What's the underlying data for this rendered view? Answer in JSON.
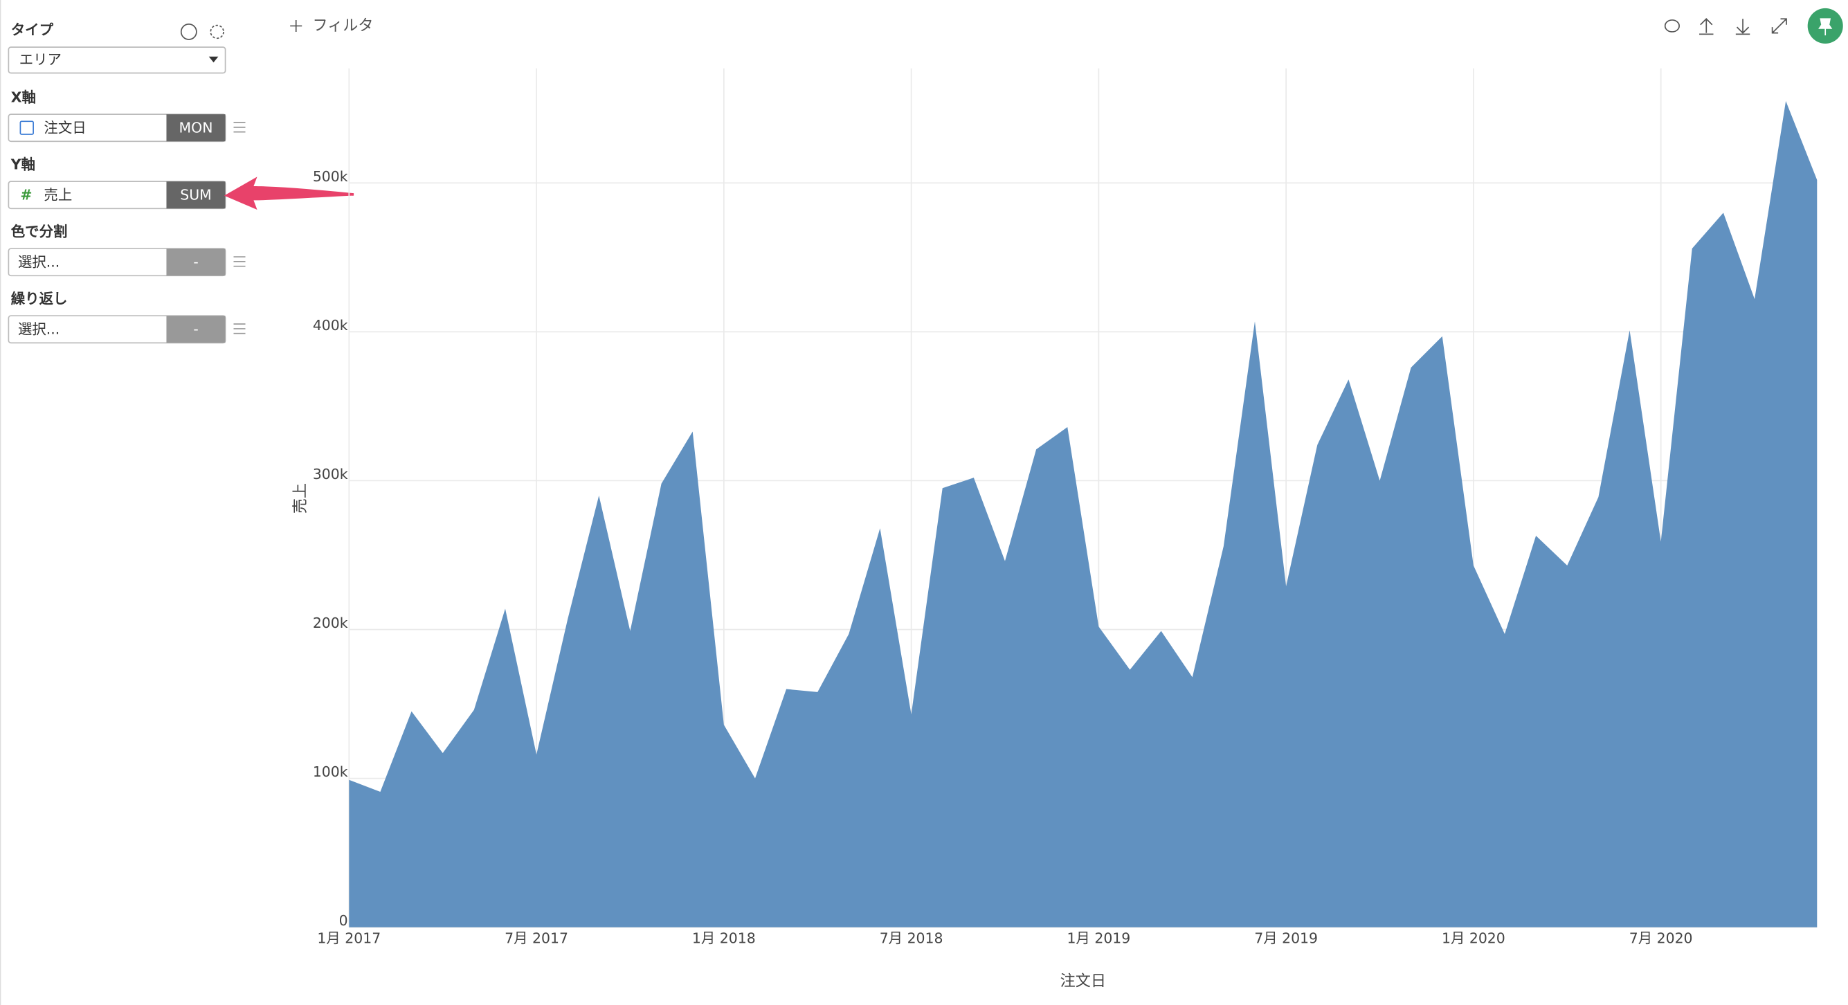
{
  "sidebar": {
    "type_label": "タイプ",
    "type_value": "エリア",
    "x_axis": {
      "label": "X軸",
      "field": "注文日",
      "agg": "MON"
    },
    "y_axis": {
      "label": "Y軸",
      "field": "売上",
      "agg": "SUM"
    },
    "color": {
      "label": "色で分割",
      "field": "選択...",
      "agg": "-"
    },
    "repeat": {
      "label": "繰り返し",
      "field": "選択...",
      "agg": "-"
    }
  },
  "toolbar": {
    "filter": "フィルタ"
  },
  "chart_data": {
    "type": "area",
    "x_label": "注文日",
    "y_label": "売上",
    "grid": true,
    "color": "#6191c0",
    "x": [
      "2017-01",
      "2017-02",
      "2017-03",
      "2017-04",
      "2017-05",
      "2017-06",
      "2017-07",
      "2017-08",
      "2017-09",
      "2017-10",
      "2017-11",
      "2017-12",
      "2018-01",
      "2018-02",
      "2018-03",
      "2018-04",
      "2018-05",
      "2018-06",
      "2018-07",
      "2018-08",
      "2018-09",
      "2018-10",
      "2018-11",
      "2018-12",
      "2019-01",
      "2019-02",
      "2019-03",
      "2019-04",
      "2019-05",
      "2019-06",
      "2019-07",
      "2019-08",
      "2019-09",
      "2019-10",
      "2019-11",
      "2019-12",
      "2020-01",
      "2020-02",
      "2020-03",
      "2020-04",
      "2020-05",
      "2020-06",
      "2020-07",
      "2020-08",
      "2020-09",
      "2020-10",
      "2020-11",
      "2020-12"
    ],
    "values": [
      99000,
      91000,
      145000,
      117000,
      146000,
      214000,
      116000,
      207000,
      290000,
      199000,
      298000,
      333000,
      136000,
      100000,
      160000,
      158000,
      197000,
      268000,
      143000,
      295000,
      302000,
      246000,
      321000,
      336000,
      202000,
      173000,
      199000,
      168000,
      256000,
      407000,
      229000,
      324000,
      368000,
      300000,
      376000,
      397000,
      243000,
      197000,
      263000,
      243000,
      289000,
      401000,
      259000,
      456000,
      480000,
      422000,
      555000,
      502000
    ],
    "ylim": [
      0,
      577000
    ],
    "yticks": [
      0,
      {
        "value": 100000,
        "label": "100k"
      },
      {
        "value": 200000,
        "label": "200k"
      },
      {
        "value": 300000,
        "label": "300k"
      },
      {
        "value": 400000,
        "label": "400k"
      },
      {
        "value": 500000,
        "label": "500k"
      }
    ],
    "xticks": [
      {
        "value": "2017-01",
        "label": "1月 2017"
      },
      {
        "value": "2017-07",
        "label": "7月 2017"
      },
      {
        "value": "2018-01",
        "label": "1月 2018"
      },
      {
        "value": "2018-07",
        "label": "7月 2018"
      },
      {
        "value": "2019-01",
        "label": "1月 2019"
      },
      {
        "value": "2019-07",
        "label": "7月 2019"
      },
      {
        "value": "2020-01",
        "label": "1月 2020"
      },
      {
        "value": "2020-07",
        "label": "7月 2020"
      }
    ]
  }
}
